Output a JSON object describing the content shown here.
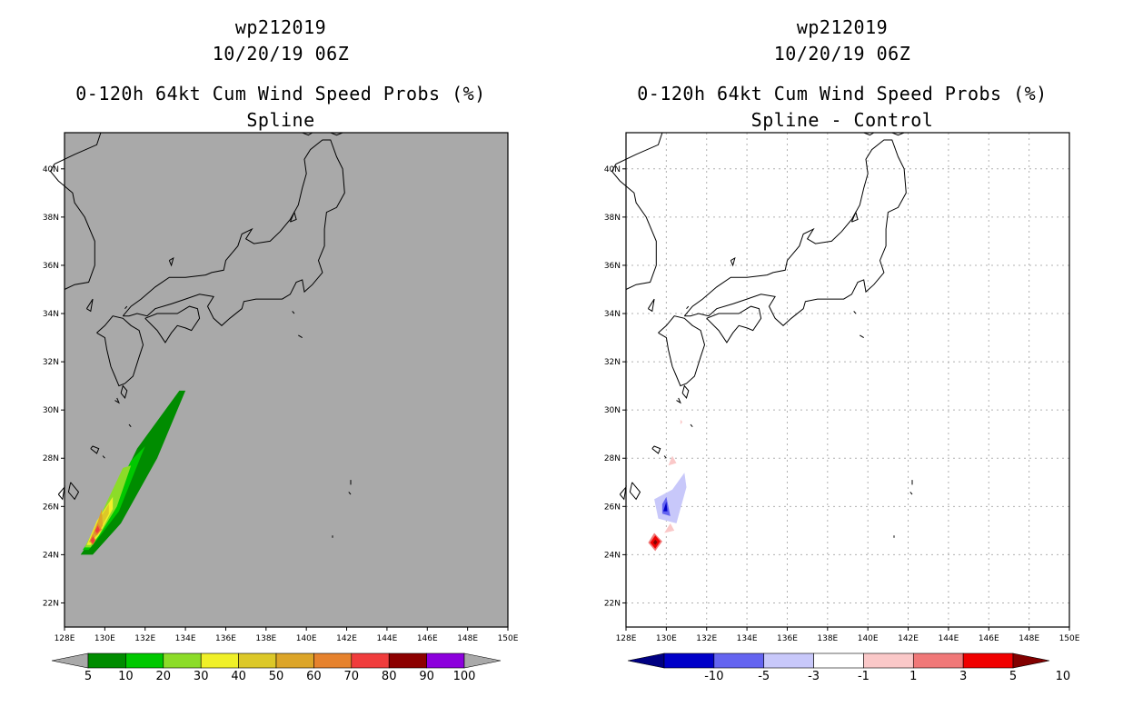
{
  "panels": [
    {
      "id": "spline",
      "header": {
        "storm": "wp212019",
        "datetime": "10/20/19 06Z",
        "product": "0-120h 64kt Cum Wind Speed Probs (%)",
        "subtitle": "Spline"
      },
      "background": "#a9a9a9",
      "colorbar": {
        "colors": [
          "#008c00",
          "#00c800",
          "#8cdc28",
          "#f0f028",
          "#dcc828",
          "#dca528",
          "#e6822d",
          "#f03c3c",
          "#8c0000",
          "#8c00dc"
        ],
        "left_arrow": "#a9a9a9",
        "right_arrow": "#a9a9a9",
        "labels": [
          "5",
          "10",
          "20",
          "30",
          "40",
          "50",
          "60",
          "70",
          "80",
          "90",
          "100"
        ]
      }
    },
    {
      "id": "diff",
      "header": {
        "storm": "wp212019",
        "datetime": "10/20/19 06Z",
        "product": "0-120h 64kt Cum Wind Speed Probs (%)",
        "subtitle": "Spline - Control"
      },
      "background": "#ffffff",
      "colorbar": {
        "colors": [
          "#0000c8",
          "#6464f0",
          "#c8c8fa",
          "#ffffff",
          "#fac8c8",
          "#f07878",
          "#f00000"
        ],
        "left_arrow": "#000082",
        "right_arrow": "#820000",
        "labels": [
          "-10",
          "-5",
          "-3",
          "-1",
          "1",
          "3",
          "5",
          "10"
        ]
      }
    }
  ],
  "chart_data": [
    {
      "type": "heatmap",
      "title": "0-120h 64kt Cum Wind Speed Probs (%) - Spline",
      "xlim": [
        128,
        150
      ],
      "ylim": [
        21,
        41.5
      ],
      "x_ticks": [
        "128E",
        "130E",
        "132E",
        "134E",
        "136E",
        "138E",
        "140E",
        "142E",
        "144E",
        "146E",
        "148E",
        "150E"
      ],
      "y_ticks": [
        "22N",
        "24N",
        "26N",
        "28N",
        "30N",
        "32N",
        "34N",
        "36N",
        "38N",
        "40N"
      ],
      "grid": false,
      "levels": [
        5,
        10,
        20,
        30,
        40,
        50,
        60,
        70,
        80,
        90,
        100
      ],
      "regions": [
        {
          "level": 5,
          "polygon": [
            [
              128.8,
              24.0
            ],
            [
              129.7,
              25.1
            ],
            [
              131.6,
              28.4
            ],
            [
              133.7,
              30.8
            ],
            [
              134.0,
              30.8
            ],
            [
              132.6,
              28.0
            ],
            [
              130.8,
              25.3
            ],
            [
              129.4,
              24.0
            ]
          ]
        },
        {
          "level": 10,
          "polygon": [
            [
              128.9,
              24.2
            ],
            [
              129.7,
              25.2
            ],
            [
              131.3,
              27.9
            ],
            [
              132.0,
              28.5
            ],
            [
              131.8,
              28.1
            ],
            [
              130.7,
              25.8
            ],
            [
              129.6,
              24.6
            ],
            [
              129.2,
              24.2
            ]
          ]
        },
        {
          "level": 20,
          "polygon": [
            [
              129.0,
              24.3
            ],
            [
              129.6,
              25.3
            ],
            [
              130.9,
              27.6
            ],
            [
              131.3,
              27.7
            ],
            [
              130.6,
              26.0
            ],
            [
              129.8,
              24.9
            ],
            [
              129.3,
              24.3
            ]
          ]
        },
        {
          "level": 30,
          "polygon": [
            [
              129.1,
              24.4
            ],
            [
              129.6,
              25.4
            ],
            [
              130.4,
              26.4
            ],
            [
              130.4,
              25.9
            ],
            [
              129.7,
              24.8
            ],
            [
              129.3,
              24.4
            ]
          ]
        },
        {
          "level": 40,
          "polygon": [
            [
              129.2,
              24.5
            ],
            [
              129.6,
              25.3
            ],
            [
              130.2,
              26.1
            ],
            [
              130.2,
              25.7
            ],
            [
              129.6,
              24.8
            ]
          ]
        },
        {
          "level": 50,
          "polygon": [
            [
              129.2,
              24.5
            ],
            [
              129.55,
              25.1
            ],
            [
              129.85,
              25.9
            ],
            [
              129.9,
              25.2
            ],
            [
              129.5,
              24.7
            ]
          ]
        },
        {
          "level": 60,
          "polygon": [
            [
              129.25,
              24.55
            ],
            [
              129.4,
              24.85
            ],
            [
              129.55,
              24.6
            ],
            [
              129.4,
              24.4
            ]
          ]
        },
        {
          "level": 60,
          "polygon": [
            [
              129.45,
              24.9
            ],
            [
              129.65,
              25.3
            ],
            [
              129.85,
              25.05
            ],
            [
              129.6,
              24.8
            ]
          ]
        },
        {
          "level": 70,
          "polygon": [
            [
              129.3,
              24.6
            ],
            [
              129.42,
              24.75
            ],
            [
              129.5,
              24.58
            ],
            [
              129.4,
              24.45
            ]
          ]
        },
        {
          "level": 70,
          "polygon": [
            [
              129.52,
              25.0
            ],
            [
              129.65,
              25.2
            ],
            [
              129.75,
              25.02
            ],
            [
              129.62,
              24.88
            ]
          ]
        }
      ]
    },
    {
      "type": "heatmap",
      "title": "0-120h 64kt Cum Wind Speed Probs (%) - Spline - Control",
      "xlim": [
        128,
        150
      ],
      "ylim": [
        21,
        41.5
      ],
      "x_ticks": [
        "128E",
        "130E",
        "132E",
        "134E",
        "136E",
        "138E",
        "140E",
        "142E",
        "144E",
        "146E",
        "148E",
        "150E"
      ],
      "y_ticks": [
        "22N",
        "24N",
        "26N",
        "28N",
        "30N",
        "32N",
        "34N",
        "36N",
        "38N",
        "40N"
      ],
      "grid": true,
      "levels": [
        -10,
        -5,
        -3,
        -1,
        1,
        3,
        5,
        10
      ],
      "regions": [
        {
          "level": -1,
          "polygon": [
            [
              129.6,
              25.5
            ],
            [
              130.5,
              25.3
            ],
            [
              131.0,
              26.8
            ],
            [
              130.9,
              27.4
            ],
            [
              130.3,
              26.7
            ],
            [
              129.4,
              26.3
            ]
          ]
        },
        {
          "level": -3,
          "polygon": [
            [
              129.8,
              25.7
            ],
            [
              130.2,
              25.6
            ],
            [
              130.0,
              26.4
            ],
            [
              129.8,
              26.1
            ]
          ]
        },
        {
          "level": -5,
          "polygon": [
            [
              129.85,
              25.8
            ],
            [
              130.05,
              25.8
            ],
            [
              130.0,
              26.2
            ]
          ]
        },
        {
          "level": 1,
          "polygon": [
            [
              130.1,
              27.7
            ],
            [
              130.5,
              27.8
            ],
            [
              130.3,
              28.1
            ]
          ]
        },
        {
          "level": 1,
          "polygon": [
            [
              130.7,
              29.4
            ],
            [
              130.8,
              29.5
            ],
            [
              130.7,
              29.6
            ]
          ]
        },
        {
          "level": 1,
          "polygon": [
            [
              129.9,
              24.9
            ],
            [
              130.4,
              25.0
            ],
            [
              130.2,
              25.3
            ]
          ]
        },
        {
          "level": 3,
          "polygon": [
            [
              129.1,
              24.5
            ],
            [
              129.4,
              24.9
            ],
            [
              129.8,
              24.55
            ],
            [
              129.45,
              24.15
            ]
          ]
        },
        {
          "level": 5,
          "polygon": [
            [
              129.2,
              24.5
            ],
            [
              129.45,
              24.8
            ],
            [
              129.7,
              24.55
            ],
            [
              129.45,
              24.25
            ]
          ]
        },
        {
          "level": 10,
          "polygon": [
            [
              129.35,
              24.5
            ],
            [
              129.45,
              24.63
            ],
            [
              129.56,
              24.52
            ],
            [
              129.45,
              24.4
            ]
          ]
        }
      ]
    }
  ],
  "map": {
    "coastlines": [
      [
        [
          128.0,
          35.0
        ],
        [
          128.5,
          35.2
        ],
        [
          129.2,
          35.3
        ],
        [
          129.5,
          36.0
        ],
        [
          129.5,
          37.0
        ],
        [
          129.0,
          38.0
        ],
        [
          128.5,
          38.6
        ],
        [
          128.4,
          39.0
        ],
        [
          127.7,
          39.5
        ],
        [
          127.3,
          39.9
        ],
        [
          127.5,
          40.2
        ],
        [
          128.5,
          40.6
        ],
        [
          129.6,
          41.0
        ],
        [
          129.8,
          41.5
        ]
      ],
      [
        [
          129.6,
          33.2
        ],
        [
          130.0,
          33.5
        ],
        [
          130.4,
          33.9
        ],
        [
          130.9,
          33.8
        ],
        [
          131.3,
          33.5
        ],
        [
          131.7,
          33.3
        ],
        [
          131.9,
          32.7
        ],
        [
          131.7,
          32.2
        ],
        [
          131.4,
          31.4
        ],
        [
          131.0,
          31.1
        ],
        [
          130.7,
          31.0
        ],
        [
          130.5,
          31.4
        ],
        [
          130.3,
          31.8
        ],
        [
          130.1,
          32.5
        ],
        [
          130.0,
          33.0
        ],
        [
          129.6,
          33.2
        ]
      ],
      [
        [
          130.9,
          33.9
        ],
        [
          131.3,
          34.3
        ],
        [
          131.8,
          34.6
        ],
        [
          132.5,
          35.1
        ],
        [
          133.2,
          35.5
        ],
        [
          134.0,
          35.5
        ],
        [
          135.0,
          35.6
        ],
        [
          135.3,
          35.7
        ],
        [
          135.9,
          35.8
        ],
        [
          136.0,
          36.2
        ],
        [
          136.6,
          36.8
        ],
        [
          136.8,
          37.3
        ],
        [
          137.3,
          37.5
        ],
        [
          137.0,
          37.1
        ],
        [
          137.4,
          36.9
        ],
        [
          138.2,
          37.0
        ],
        [
          138.7,
          37.4
        ],
        [
          139.2,
          37.9
        ],
        [
          139.6,
          38.5
        ],
        [
          139.8,
          39.2
        ],
        [
          140.0,
          39.8
        ],
        [
          139.9,
          40.4
        ],
        [
          140.2,
          40.8
        ],
        [
          140.8,
          41.2
        ],
        [
          141.2,
          41.2
        ],
        [
          141.5,
          40.5
        ],
        [
          141.8,
          40.0
        ],
        [
          141.9,
          39.0
        ],
        [
          141.5,
          38.4
        ],
        [
          141.0,
          38.2
        ],
        [
          140.9,
          37.5
        ],
        [
          140.9,
          36.8
        ],
        [
          140.6,
          36.2
        ],
        [
          140.8,
          35.7
        ],
        [
          140.3,
          35.2
        ],
        [
          139.9,
          34.9
        ],
        [
          139.8,
          35.4
        ],
        [
          139.5,
          35.3
        ],
        [
          139.2,
          34.8
        ],
        [
          138.8,
          34.6
        ],
        [
          138.2,
          34.6
        ],
        [
          137.5,
          34.6
        ],
        [
          136.9,
          34.5
        ],
        [
          136.8,
          34.2
        ],
        [
          136.2,
          33.8
        ],
        [
          135.8,
          33.5
        ],
        [
          135.4,
          33.8
        ],
        [
          135.1,
          34.3
        ],
        [
          135.4,
          34.7
        ],
        [
          134.7,
          34.8
        ],
        [
          134.0,
          34.6
        ],
        [
          133.3,
          34.4
        ],
        [
          132.5,
          34.2
        ],
        [
          132.1,
          33.9
        ],
        [
          131.6,
          34.0
        ],
        [
          131.2,
          33.9
        ],
        [
          130.9,
          33.9
        ]
      ],
      [
        [
          132.0,
          33.8
        ],
        [
          132.6,
          33.3
        ],
        [
          133.0,
          32.8
        ],
        [
          133.3,
          33.2
        ],
        [
          133.6,
          33.5
        ],
        [
          134.0,
          33.4
        ],
        [
          134.3,
          33.3
        ],
        [
          134.7,
          33.8
        ],
        [
          134.6,
          34.2
        ],
        [
          134.2,
          34.3
        ],
        [
          133.6,
          34.0
        ],
        [
          133.0,
          34.0
        ],
        [
          132.6,
          34.0
        ],
        [
          132.0,
          33.8
        ]
      ],
      [
        [
          139.8,
          41.5
        ],
        [
          140.1,
          41.4
        ],
        [
          140.3,
          41.5
        ]
      ],
      [
        [
          141.2,
          41.5
        ],
        [
          141.5,
          41.4
        ],
        [
          141.8,
          41.5
        ]
      ],
      [
        [
          130.8,
          30.7
        ],
        [
          131.0,
          30.5
        ],
        [
          131.1,
          30.8
        ],
        [
          130.9,
          31.0
        ],
        [
          130.8,
          30.7
        ]
      ],
      [
        [
          130.5,
          30.4
        ],
        [
          130.7,
          30.3
        ],
        [
          130.6,
          30.5
        ]
      ],
      [
        [
          129.3,
          28.4
        ],
        [
          129.6,
          28.2
        ],
        [
          129.7,
          28.4
        ],
        [
          129.4,
          28.5
        ],
        [
          129.3,
          28.4
        ]
      ],
      [
        [
          128.3,
          27.0
        ],
        [
          128.7,
          26.6
        ],
        [
          128.5,
          26.3
        ],
        [
          128.2,
          26.6
        ],
        [
          128.3,
          27.0
        ]
      ],
      [
        [
          127.7,
          26.5
        ],
        [
          128.0,
          26.8
        ],
        [
          127.9,
          26.3
        ],
        [
          127.7,
          26.5
        ]
      ],
      [
        [
          129.1,
          34.2
        ],
        [
          129.4,
          34.6
        ],
        [
          129.3,
          34.1
        ],
        [
          129.1,
          34.2
        ]
      ],
      [
        [
          139.2,
          37.8
        ],
        [
          139.4,
          38.2
        ],
        [
          139.5,
          37.9
        ],
        [
          139.2,
          37.8
        ]
      ],
      [
        [
          133.2,
          36.2
        ],
        [
          133.4,
          36.3
        ],
        [
          133.3,
          36.0
        ],
        [
          133.2,
          36.2
        ]
      ],
      [
        [
          139.3,
          34.1
        ],
        [
          139.4,
          34.0
        ]
      ],
      [
        [
          139.6,
          33.1
        ],
        [
          139.8,
          33.0
        ]
      ],
      [
        [
          142.2,
          26.9
        ],
        [
          142.2,
          27.1
        ]
      ],
      [
        [
          142.1,
          26.6
        ],
        [
          142.2,
          26.5
        ]
      ],
      [
        [
          141.3,
          24.8
        ],
        [
          141.3,
          24.7
        ]
      ],
      [
        [
          131.2,
          29.4
        ],
        [
          131.3,
          29.3
        ]
      ],
      [
        [
          129.9,
          28.1
        ],
        [
          130.0,
          28.0
        ]
      ],
      [
        [
          131.0,
          34.2
        ],
        [
          131.1,
          34.3
        ]
      ]
    ]
  }
}
